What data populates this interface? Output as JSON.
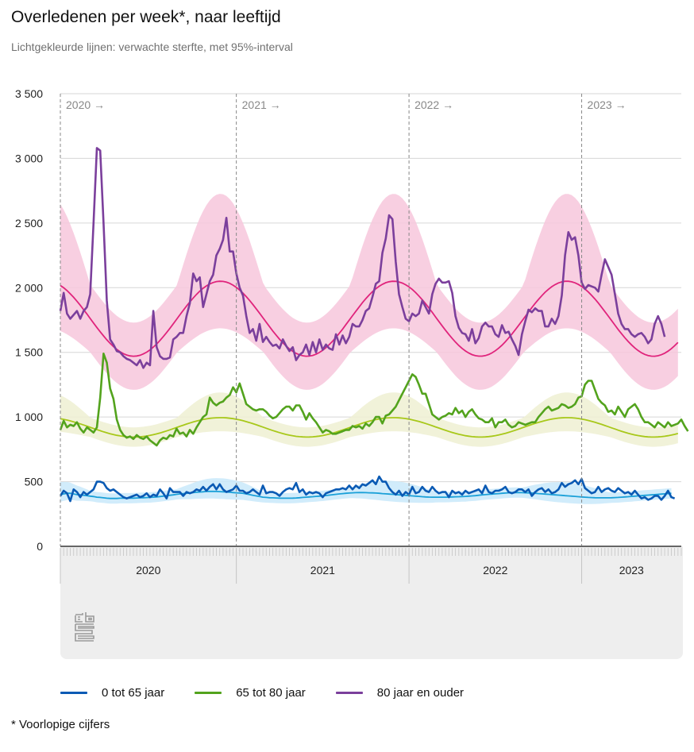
{
  "header": {
    "title": "Overledenen per week*, naar leeftijd",
    "subtitle": "Lichtgekleurde lijnen: verwachte sterfte, met 95%-interval"
  },
  "footnote": "* Voorlopige cijfers",
  "logo": "cbs-logo-icon",
  "chart_data": {
    "type": "line",
    "title": "Overledenen per week*, naar leeftijd",
    "subtitle": "Lichtgekleurde lijnen: verwachte sterfte, met 95%-interval",
    "xlabel": "",
    "ylabel": "",
    "ylim": [
      0,
      3500
    ],
    "yticks": [
      0,
      500,
      1000,
      1500,
      2000,
      2500,
      3000,
      3500
    ],
    "ytick_labels": [
      "0",
      "500",
      "1 000",
      "1 500",
      "2 000",
      "2 500",
      "3 000",
      "3 500"
    ],
    "grid": true,
    "legend_position": "bottom",
    "x_unit": "week",
    "x_start": "2020 week 1",
    "total_weeks_axis": 187,
    "years": [
      {
        "label": "2020",
        "marker": "2020 →",
        "weeks": 53
      },
      {
        "label": "2021",
        "marker": "2021 →",
        "weeks": 52
      },
      {
        "label": "2022",
        "marker": "2022 →",
        "weeks": 52
      },
      {
        "label": "2023",
        "marker": "2023 →",
        "weeks": 30
      }
    ],
    "series": [
      {
        "name": "0 tot 65 jaar",
        "color": "#0a5ab4",
        "values": [
          390,
          430,
          410,
          350,
          440,
          420,
          380,
          420,
          400,
          420,
          440,
          500,
          500,
          490,
          450,
          430,
          440,
          420,
          400,
          380,
          370,
          380,
          390,
          400,
          380,
          390,
          410,
          380,
          400,
          390,
          440,
          410,
          370,
          450,
          420,
          420,
          420,
          390,
          420,
          410,
          420,
          440,
          430,
          460,
          430,
          460,
          480,
          440,
          480,
          440,
          420,
          430,
          440,
          470,
          430,
          430,
          410,
          420,
          440,
          420,
          400,
          470,
          410,
          420,
          420,
          410,
          390,
          420,
          440,
          450,
          440,
          490,
          420,
          440,
          400,
          420,
          410,
          420,
          410,
          380,
          410,
          420,
          430,
          440,
          440,
          450,
          440,
          470,
          440,
          470,
          450,
          480,
          470,
          490,
          510,
          480,
          540,
          500,
          500,
          450,
          420,
          400,
          430,
          390,
          420,
          400,
          460,
          410,
          420,
          460,
          430,
          420,
          460,
          430,
          410,
          420,
          420,
          380,
          430,
          410,
          420,
          400,
          430,
          410,
          420,
          430,
          440,
          410,
          470,
          420,
          410,
          430,
          430,
          440,
          460,
          420,
          410,
          420,
          440,
          440,
          420,
          440,
          390,
          420,
          440,
          450,
          420,
          440,
          410,
          420,
          440,
          490,
          460,
          480,
          490,
          510,
          480,
          520,
          450,
          430,
          410,
          420,
          460,
          420,
          440,
          450,
          430,
          420,
          450,
          430,
          410,
          420,
          400,
          430,
          400,
          370,
          380,
          360,
          370,
          390,
          390,
          360,
          390,
          430,
          380,
          370
        ],
        "expected": [
          400,
          405,
          410,
          410,
          405,
          400,
          398,
          395,
          392,
          388,
          385,
          380,
          378,
          375,
          372,
          370,
          370,
          370,
          372,
          372,
          372,
          372,
          373,
          374,
          375,
          376,
          377,
          378,
          380,
          382,
          385,
          388,
          392,
          395,
          398,
          402,
          405,
          408,
          410,
          412,
          415,
          418,
          420,
          422,
          424,
          425,
          425,
          424,
          423,
          422,
          420,
          418,
          416,
          414,
          412,
          410,
          405,
          400,
          395,
          390,
          385,
          380,
          378,
          376,
          375,
          374,
          373,
          372,
          372,
          372,
          373,
          374,
          376,
          378,
          380,
          382,
          384,
          386,
          388,
          390,
          393,
          396,
          399,
          402,
          405,
          408,
          410,
          412,
          414,
          415,
          416,
          416,
          415,
          414,
          413,
          412,
          410,
          408,
          406,
          404,
          402,
          400,
          398,
          396,
          394,
          392,
          390,
          388,
          386,
          384,
          382,
          381,
          380,
          380,
          380,
          380,
          380,
          381,
          382,
          383,
          384,
          385,
          386,
          388,
          390,
          392,
          395,
          398,
          400,
          402,
          404,
          406,
          408,
          410,
          412,
          414,
          415,
          416,
          416,
          415,
          414,
          413,
          412,
          410,
          408,
          406,
          404,
          402,
          400,
          398,
          396,
          394,
          392,
          390,
          388,
          386,
          384,
          382,
          380,
          378,
          377,
          376,
          375,
          375,
          375,
          375,
          376,
          377,
          378,
          380,
          382,
          384,
          386,
          388,
          390,
          392,
          394,
          396,
          398,
          400,
          402,
          404,
          406,
          408,
          410
        ],
        "band_color": "#a8d8f5",
        "expected_color": "#1aa0d8"
      },
      {
        "name": "65 tot 80 jaar",
        "color": "#53a31d",
        "values": [
          900,
          970,
          920,
          940,
          930,
          960,
          910,
          880,
          920,
          900,
          880,
          920,
          1150,
          1490,
          1420,
          1220,
          1140,
          980,
          900,
          860,
          840,
          850,
          830,
          860,
          840,
          830,
          850,
          820,
          800,
          780,
          820,
          840,
          830,
          860,
          850,
          910,
          870,
          880,
          850,
          900,
          870,
          920,
          960,
          1000,
          1020,
          1150,
          1110,
          1090,
          1110,
          1120,
          1150,
          1170,
          1230,
          1190,
          1260,
          1180,
          1100,
          1080,
          1060,
          1050,
          1060,
          1060,
          1040,
          1010,
          990,
          1000,
          1030,
          1060,
          1080,
          1080,
          1050,
          1090,
          1090,
          1040,
          980,
          1030,
          990,
          960,
          920,
          880,
          900,
          890,
          870,
          870,
          880,
          890,
          900,
          900,
          930,
          920,
          930,
          910,
          950,
          930,
          960,
          1000,
          1000,
          950,
          1010,
          1020,
          1050,
          1080,
          1130,
          1180,
          1230,
          1280,
          1330,
          1310,
          1250,
          1180,
          1180,
          1100,
          1020,
          1000,
          980,
          1000,
          1010,
          1030,
          1020,
          1070,
          1030,
          1050,
          1000,
          1040,
          1060,
          1020,
          990,
          980,
          960,
          960,
          990,
          920,
          960,
          960,
          980,
          940,
          920,
          930,
          960,
          950,
          940,
          950,
          960,
          960,
          1000,
          1030,
          1060,
          1080,
          1050,
          1060,
          1070,
          1100,
          1090,
          1070,
          1080,
          1100,
          1150,
          1160,
          1250,
          1280,
          1280,
          1210,
          1140,
          1110,
          1090,
          1040,
          1050,
          1020,
          1080,
          1040,
          1000,
          1060,
          1080,
          1100,
          1060,
          1000,
          960,
          960,
          940,
          920,
          960,
          940,
          920,
          960,
          930,
          940,
          950,
          980,
          930,
          890
        ]
      }
    ]
  }
}
